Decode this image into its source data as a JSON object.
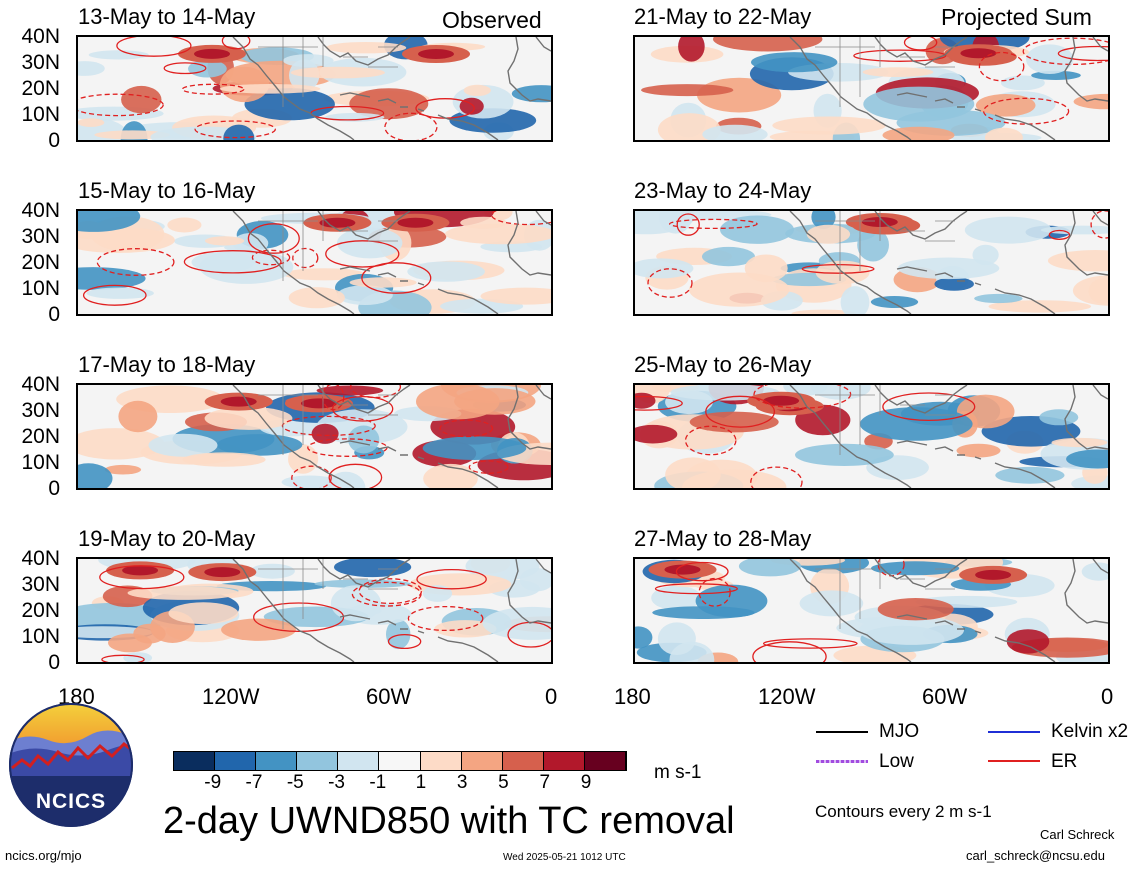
{
  "header": {
    "left_label": "Observed",
    "right_label": "Projected Sum"
  },
  "y_ticks": [
    "40N",
    "30N",
    "20N",
    "10N",
    "0"
  ],
  "x_ticks": [
    "180",
    "120W",
    "60W",
    "0"
  ],
  "panels": [
    {
      "title": "13-May to 14-May"
    },
    {
      "title": "15-May to 16-May"
    },
    {
      "title": "17-May to 18-May"
    },
    {
      "title": "19-May to 20-May"
    },
    {
      "title": "21-May to 22-May"
    },
    {
      "title": "23-May to 24-May"
    },
    {
      "title": "25-May to 26-May"
    },
    {
      "title": "27-May to 28-May"
    }
  ],
  "colorbar": {
    "ticks": [
      "-9",
      "-7",
      "-5",
      "-3",
      "-1",
      "1",
      "3",
      "5",
      "7",
      "9"
    ],
    "colors": [
      "#0a2d5e",
      "#2166ac",
      "#4393c3",
      "#92c5de",
      "#d1e5f0",
      "#f7f7f7",
      "#fddbc7",
      "#f4a582",
      "#d6604d",
      "#b2182b",
      "#67001f"
    ],
    "units": "m s-1"
  },
  "legend": {
    "items": [
      {
        "label": "MJO",
        "color": "#000000"
      },
      {
        "label": "Kelvin x2",
        "color": "#1f2fd6"
      },
      {
        "label": "Low",
        "color": "#a24be0"
      },
      {
        "label": "ER",
        "color": "#e02020"
      }
    ],
    "contours_note": "Contours every 2 m s-1"
  },
  "main_title": "2-day UWND850 with TC removal",
  "logo_text": "NCICS",
  "footer": {
    "url": "ncics.org/mjo",
    "timestamp": "Wed 2025-05-21 1012 UTC",
    "author": "Carl Schreck",
    "email": "carl_schreck@ncsu.edu"
  }
}
